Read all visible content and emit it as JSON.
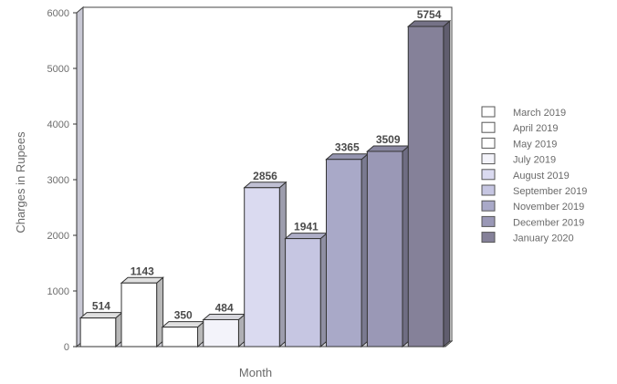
{
  "chart_data": {
    "type": "bar",
    "title": "",
    "xlabel": "Month",
    "ylabel": "Charges in Rupees",
    "ylim": [
      0,
      6000
    ],
    "yticks": [
      0,
      1000,
      2000,
      3000,
      4000,
      5000,
      6000
    ],
    "categories": [
      "March 2019",
      "April 2019",
      "May 2019",
      "July 2019",
      "August 2019",
      "September 2019",
      "November 2019",
      "December 2019",
      "January 2020"
    ],
    "values": [
      514,
      1143,
      350,
      484,
      2856,
      1941,
      3365,
      3509,
      5754
    ],
    "bar_colors": [
      "#ffffff",
      "#ffffff",
      "#ffffff",
      "#f3f3fa",
      "#dadaf0",
      "#c6c6e2",
      "#a9a9c8",
      "#9a98b6",
      "#858199"
    ],
    "legend_position": "right",
    "grid": false,
    "style": "3d"
  }
}
